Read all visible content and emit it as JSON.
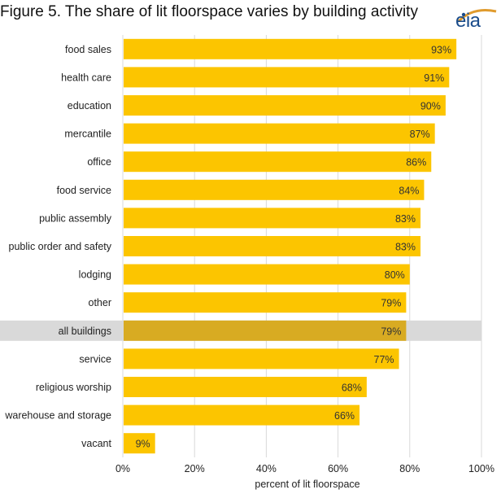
{
  "title": "Figure 5. The share of lit floorspace varies by building activity",
  "logo": {
    "text": "eia",
    "icon": "eia-logo"
  },
  "colors": {
    "bar": "#fcc500",
    "highlight_bar": "#d8ab22",
    "highlight_band": "#d9d9d9",
    "grid": "#d9d9d9"
  },
  "chart_data": {
    "type": "bar",
    "orientation": "horizontal",
    "title": "Figure 5. The share of lit floorspace varies by building activity",
    "categories": [
      "food sales",
      "health care",
      "education",
      "mercantile",
      "office",
      "food service",
      "public assembly",
      "public order and safety",
      "lodging",
      "other",
      "all buildings",
      "service",
      "religious worship",
      "warehouse and storage",
      "vacant"
    ],
    "values": [
      93,
      91,
      90,
      87,
      86,
      84,
      83,
      83,
      80,
      79,
      79,
      77,
      68,
      66,
      9
    ],
    "value_labels": [
      "93%",
      "91%",
      "90%",
      "87%",
      "86%",
      "84%",
      "83%",
      "83%",
      "80%",
      "79%",
      "79%",
      "77%",
      "68%",
      "66%",
      "9%"
    ],
    "highlighted_category": "all buildings",
    "xlabel": "percent of lit floorspace",
    "ylabel": "",
    "xlim": [
      0,
      100
    ],
    "xticks": [
      0,
      20,
      40,
      60,
      80,
      100
    ],
    "xtick_labels": [
      "0%",
      "20%",
      "40%",
      "60%",
      "80%",
      "100%"
    ],
    "grid": true,
    "legend": "none"
  }
}
